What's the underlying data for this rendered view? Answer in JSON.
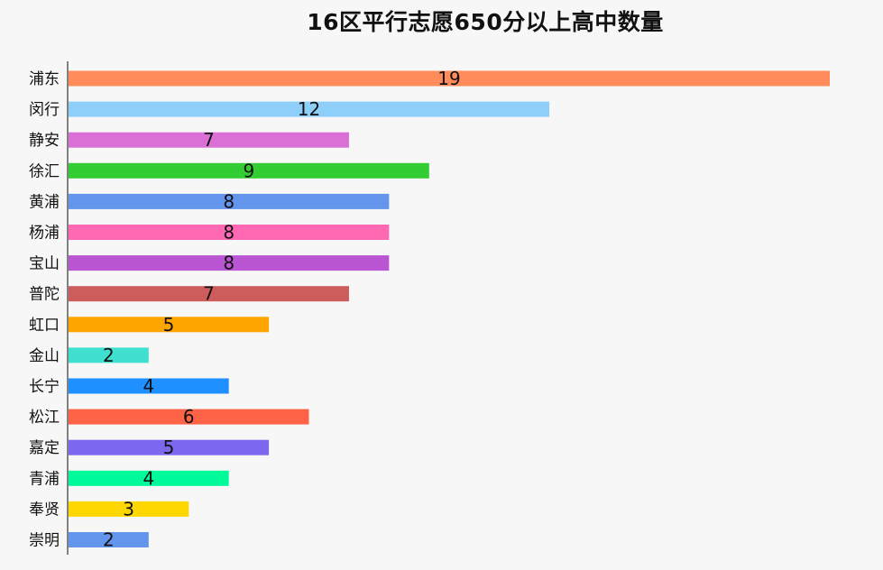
{
  "chart_data": {
    "type": "bar",
    "orientation": "horizontal",
    "title": "16区平行志愿650分以上高中数量",
    "categories": [
      "浦东",
      "闵行",
      "静安",
      "徐汇",
      "黄浦",
      "杨浦",
      "宝山",
      "普陀",
      "虹口",
      "金山",
      "长宁",
      "松江",
      "嘉定",
      "青浦",
      "奉贤",
      "崇明"
    ],
    "values": [
      19,
      12,
      7,
      9,
      8,
      8,
      8,
      7,
      5,
      2,
      4,
      6,
      5,
      4,
      3,
      2
    ],
    "colors": [
      "#FF8C5A",
      "#8DCFF8",
      "#DA70D6",
      "#32CD32",
      "#6495ED",
      "#FF69B4",
      "#BA55D3",
      "#CD5C5C",
      "#FFA500",
      "#40E0D0",
      "#1E90FF",
      "#FF6347",
      "#7B68EE",
      "#00FA9A",
      "#FFD700",
      "#6495ED"
    ],
    "data_labels": true,
    "grid": false,
    "legend": "none"
  }
}
